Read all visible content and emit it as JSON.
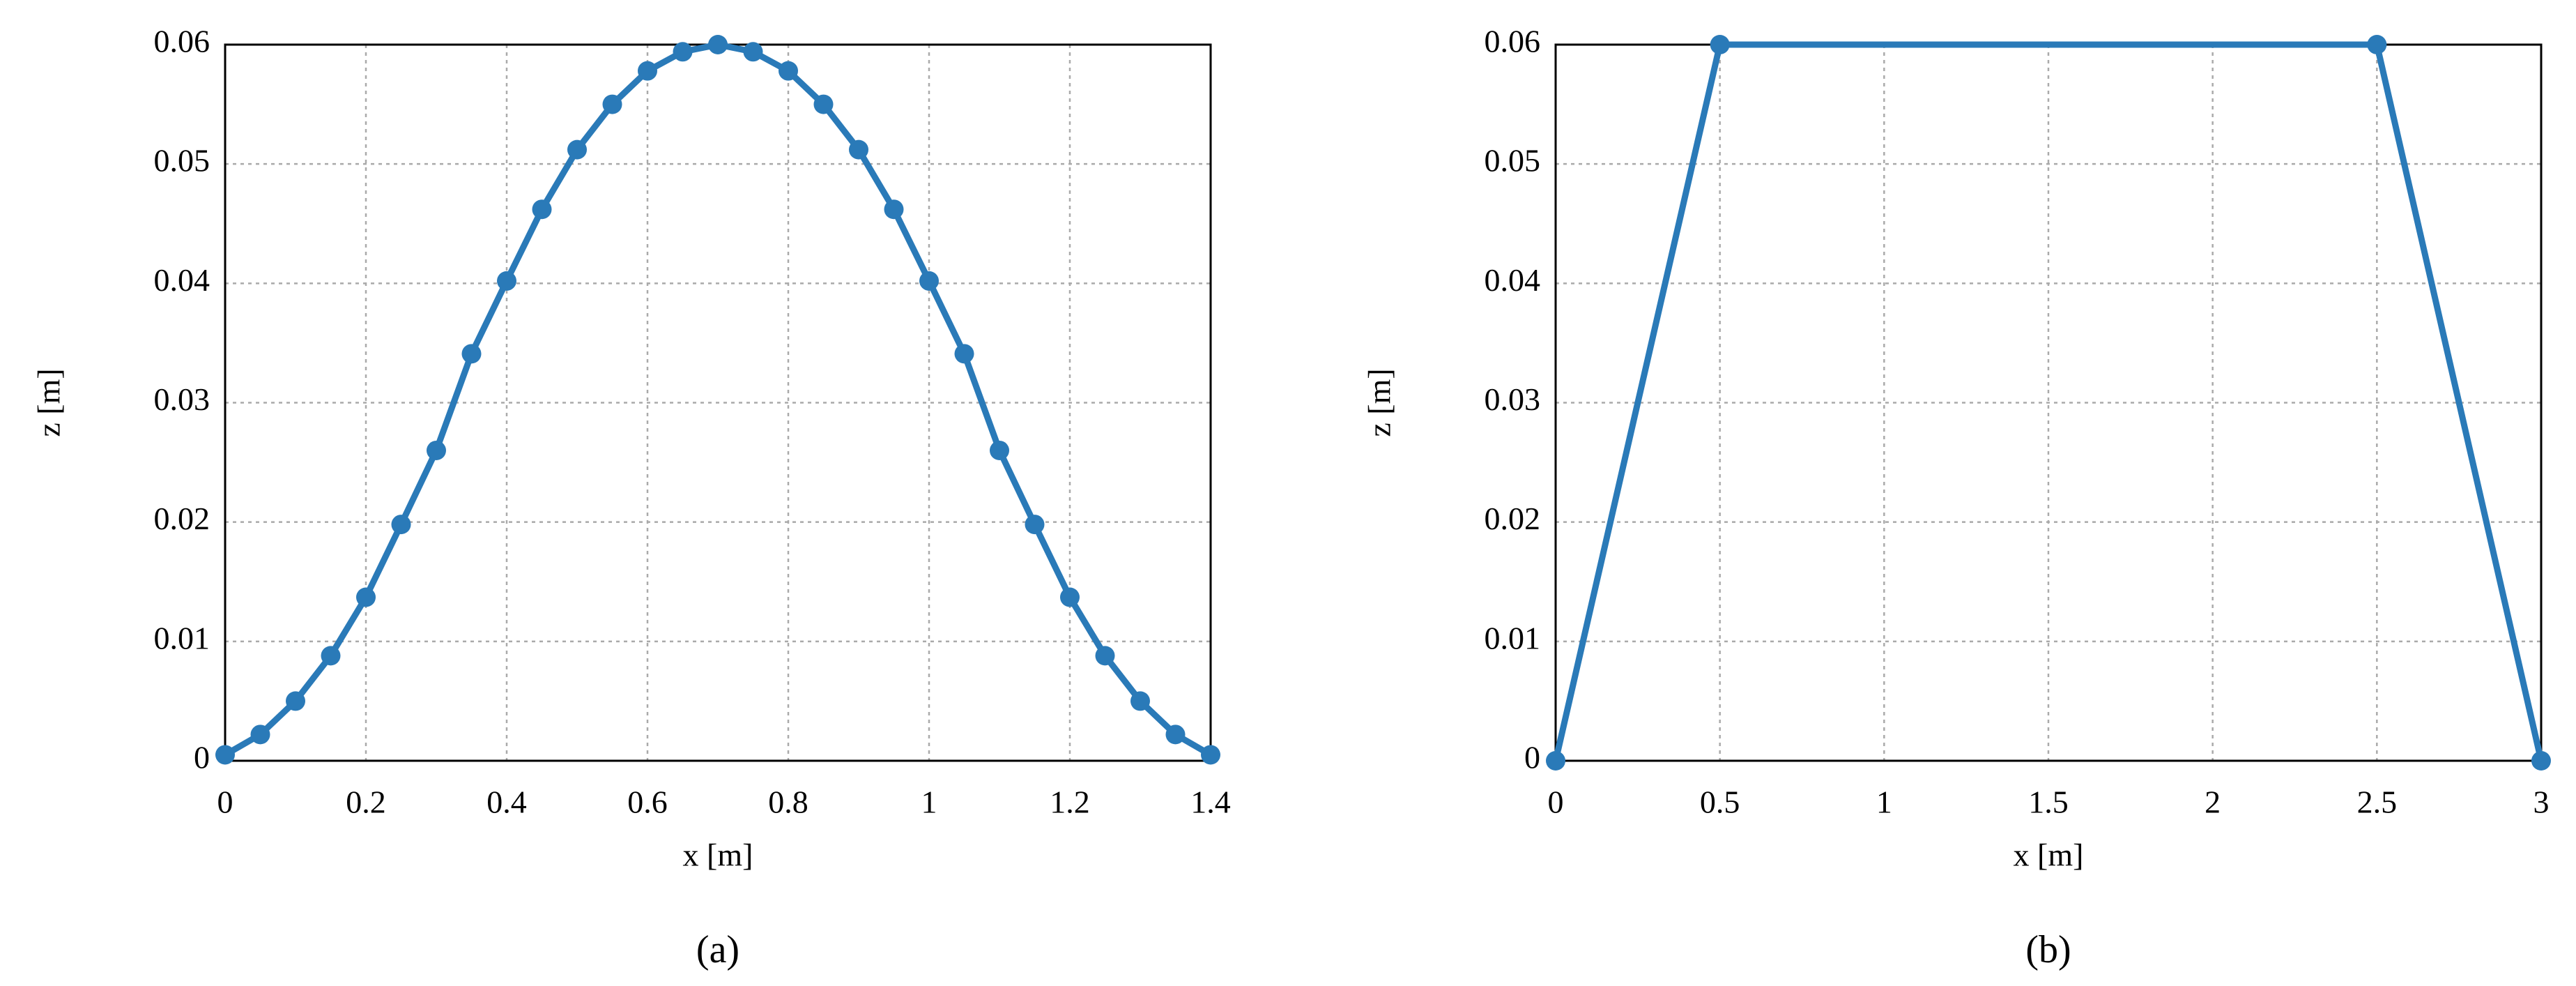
{
  "chart_data": [
    {
      "type": "line",
      "label": "(a)",
      "xlabel": "x [m]",
      "ylabel": "z [m]",
      "x": [
        0,
        0.05,
        0.1,
        0.15,
        0.2,
        0.25,
        0.3,
        0.35,
        0.4,
        0.45,
        0.5,
        0.55,
        0.6,
        0.65,
        0.7,
        0.75,
        0.8,
        0.85,
        0.9,
        0.95,
        1,
        1.05,
        1.1,
        1.15,
        1.2,
        1.25,
        1.3,
        1.35,
        1.4
      ],
      "series": [
        {
          "color": "#2a7ab8",
          "values": [
            0.0005,
            0.0022,
            0.005,
            0.0088,
            0.0137,
            0.0198,
            0.026,
            0.0341,
            0.0402,
            0.0462,
            0.0512,
            0.055,
            0.0578,
            0.0594,
            0.06,
            0.0594,
            0.0578,
            0.055,
            0.0512,
            0.0462,
            0.0402,
            0.0341,
            0.026,
            0.0198,
            0.0137,
            0.0088,
            0.005,
            0.0022,
            0.0005
          ]
        }
      ],
      "xlim": [
        0,
        1.4
      ],
      "xticks": [
        0,
        0.2,
        0.4,
        0.6,
        0.8,
        1,
        1.2,
        1.4
      ],
      "ylim": [
        0,
        0.06
      ],
      "yticks": [
        0,
        0.01,
        0.02,
        0.03,
        0.04,
        0.05,
        0.06
      ],
      "grid": true
    },
    {
      "type": "line",
      "label": "(b)",
      "xlabel": "x [m]",
      "ylabel": "z [m]",
      "x": [
        0,
        0.5,
        2.5,
        3
      ],
      "series": [
        {
          "color": "#2a7ab8",
          "values": [
            0,
            0.06,
            0.06,
            0
          ]
        }
      ],
      "xlim": [
        0,
        3
      ],
      "xticks": [
        0,
        0.5,
        1,
        1.5,
        2,
        2.5,
        3
      ],
      "ylim": [
        0,
        0.06
      ],
      "yticks": [
        0,
        0.01,
        0.02,
        0.03,
        0.04,
        0.05,
        0.06
      ],
      "grid": true
    }
  ]
}
